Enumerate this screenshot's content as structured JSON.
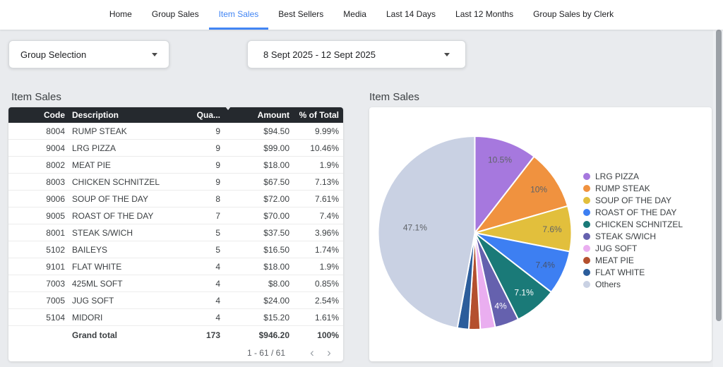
{
  "nav": {
    "tabs": [
      {
        "label": "Home",
        "active": false
      },
      {
        "label": "Group Sales",
        "active": false
      },
      {
        "label": "Item Sales",
        "active": true
      },
      {
        "label": "Best Sellers",
        "active": false
      },
      {
        "label": "Media",
        "active": false
      },
      {
        "label": "Last 14 Days",
        "active": false
      },
      {
        "label": "Last 12 Months",
        "active": false
      },
      {
        "label": "Group Sales by Clerk",
        "active": false
      }
    ]
  },
  "filters": {
    "group_selection": {
      "label": "Group Selection"
    },
    "date_range": {
      "label": "8 Sept 2025 - 12 Sept 2025"
    }
  },
  "table_panel": {
    "title": "Item Sales",
    "columns": [
      "Code",
      "Description",
      "Qua...",
      "Amount",
      "% of Total"
    ],
    "sorted_column": "Qua...",
    "sort_direction": "desc",
    "rows": [
      {
        "code": "8004",
        "description": "RUMP STEAK",
        "quantity": "9",
        "amount": "$94.50",
        "percent": "9.99%"
      },
      {
        "code": "9004",
        "description": "LRG PIZZA",
        "quantity": "9",
        "amount": "$99.00",
        "percent": "10.46%"
      },
      {
        "code": "8002",
        "description": "MEAT PIE",
        "quantity": "9",
        "amount": "$18.00",
        "percent": "1.9%"
      },
      {
        "code": "8003",
        "description": "CHICKEN SCHNITZEL",
        "quantity": "9",
        "amount": "$67.50",
        "percent": "7.13%"
      },
      {
        "code": "9006",
        "description": "SOUP OF THE DAY",
        "quantity": "8",
        "amount": "$72.00",
        "percent": "7.61%"
      },
      {
        "code": "9005",
        "description": "ROAST OF THE DAY",
        "quantity": "7",
        "amount": "$70.00",
        "percent": "7.4%"
      },
      {
        "code": "8001",
        "description": "STEAK S/WICH",
        "quantity": "5",
        "amount": "$37.50",
        "percent": "3.96%"
      },
      {
        "code": "5102",
        "description": "BAILEYS",
        "quantity": "5",
        "amount": "$16.50",
        "percent": "1.74%"
      },
      {
        "code": "9101",
        "description": "FLAT WHITE",
        "quantity": "4",
        "amount": "$18.00",
        "percent": "1.9%"
      },
      {
        "code": "7003",
        "description": "425ML SOFT",
        "quantity": "4",
        "amount": "$8.00",
        "percent": "0.85%"
      },
      {
        "code": "7005",
        "description": "JUG SOFT",
        "quantity": "4",
        "amount": "$24.00",
        "percent": "2.54%"
      },
      {
        "code": "5104",
        "description": "MIDORI",
        "quantity": "4",
        "amount": "$15.20",
        "percent": "1.61%"
      }
    ],
    "grand_total": {
      "label": "Grand total",
      "quantity": "173",
      "amount": "$946.20",
      "percent": "100%"
    },
    "pagination": {
      "range_label": "1 - 61 / 61",
      "prev_icon": "‹",
      "next_icon": "›"
    }
  },
  "chart_panel": {
    "title": "Item Sales"
  },
  "chart_data": {
    "type": "pie",
    "title": "Item Sales",
    "legend_position": "right",
    "start_angle_deg": -90,
    "direction": "clockwise",
    "slices": [
      {
        "name": "LRG PIZZA",
        "value": 10.5,
        "color": "#a678de",
        "label": "10.5%",
        "label_color": "#5f6368"
      },
      {
        "name": "RUMP STEAK",
        "value": 10.0,
        "color": "#f0923f",
        "label": "10%",
        "label_color": "#5f6368"
      },
      {
        "name": "SOUP OF THE DAY",
        "value": 7.6,
        "color": "#e2bf3c",
        "label": "7.6%",
        "label_color": "#5f6368"
      },
      {
        "name": "ROAST OF THE DAY",
        "value": 7.4,
        "color": "#3d7ff2",
        "label": "7.4%",
        "label_color": "#46536e"
      },
      {
        "name": "CHICKEN SCHNITZEL",
        "value": 7.1,
        "color": "#1a7a78",
        "label": "7.1%",
        "label_color": "#ffffff"
      },
      {
        "name": "STEAK S/WICH",
        "value": 4.0,
        "color": "#6561ae",
        "label": "4%",
        "label_color": "#ffffff"
      },
      {
        "name": "JUG SOFT",
        "value": 2.5,
        "color": "#eaaef0",
        "label": "",
        "label_color": ""
      },
      {
        "name": "MEAT PIE",
        "value": 1.9,
        "color": "#b4502e",
        "label": "",
        "label_color": ""
      },
      {
        "name": "FLAT WHITE",
        "value": 1.9,
        "color": "#2c5d9b",
        "label": "",
        "label_color": ""
      },
      {
        "name": "Others",
        "value": 47.1,
        "color": "#c9d1e3",
        "label": "47.1%",
        "label_color": "#5f6368"
      }
    ]
  },
  "colors": {
    "accent": "#4285f4",
    "table_header_bg": "#25292e",
    "page_bg": "#e9ebee"
  }
}
